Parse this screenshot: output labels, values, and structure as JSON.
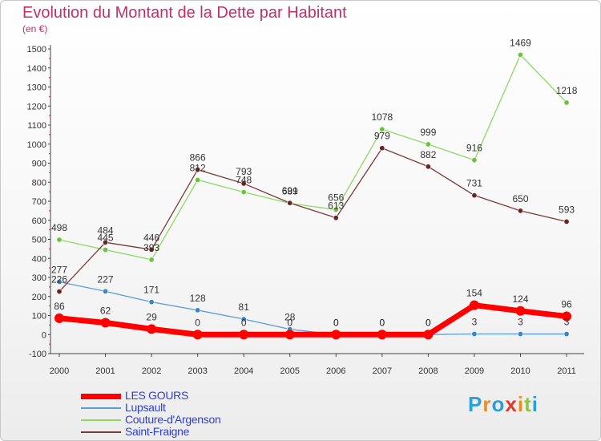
{
  "header": {
    "title": "Evolution du Montant de la Dette par Habitant",
    "subtitle": "(en €)"
  },
  "logo": {
    "text": "Proxiti",
    "letters": [
      "P",
      "r",
      "o",
      "x",
      "i",
      "t",
      "i"
    ],
    "colors": [
      "#2aa0d8",
      "#f08c1e",
      "#2aa0d8",
      "#e23a2a",
      "#f08c1e",
      "#8cc63f",
      "#2aa0d8"
    ]
  },
  "chart_data": {
    "type": "line",
    "x": [
      "2000",
      "2001",
      "2002",
      "2003",
      "2004",
      "2005",
      "2006",
      "2007",
      "2008",
      "2009",
      "2010",
      "2011"
    ],
    "ylim": [
      -100,
      1500
    ],
    "yticks": [
      -100,
      0,
      100,
      200,
      300,
      400,
      500,
      600,
      700,
      800,
      900,
      1000,
      1100,
      1200,
      1300,
      1400,
      1500
    ],
    "grid": false,
    "legend_position": "bottom-left",
    "series": [
      {
        "name": "Lupsault",
        "color": "#5a9bd5",
        "marker": "#3a85c8",
        "width": 1.3,
        "values": [
          277,
          227,
          171,
          128,
          81,
          28,
          0,
          0,
          0,
          3,
          3,
          3
        ],
        "labels": [
          "277",
          "227",
          "171",
          "128",
          "81",
          "28",
          "0",
          "0",
          "0",
          "3",
          "3",
          "3"
        ]
      },
      {
        "name": "Couture-d'Argenson",
        "color": "#8fd866",
        "marker": "#6cc23a",
        "width": 1.3,
        "values": [
          498,
          445,
          393,
          812,
          748,
          689,
          656,
          1078,
          999,
          916,
          1469,
          1218
        ],
        "labels": [
          "498",
          "445",
          "393",
          "812",
          "748",
          "689",
          "656",
          "1078",
          "999",
          "916",
          "1469",
          "1218"
        ]
      },
      {
        "name": "Saint-Fraigne",
        "color": "#7a3a3a",
        "marker": "#6a2424",
        "width": 1.3,
        "values": [
          226,
          484,
          446,
          866,
          793,
          691,
          613,
          979,
          882,
          731,
          650,
          593
        ],
        "labels": [
          "226",
          "484",
          "446",
          "866",
          "793",
          "691",
          "613",
          "979",
          "882",
          "731",
          "650",
          "593"
        ]
      },
      {
        "name": "LES GOURS",
        "color": "#ff0000",
        "marker": "#ff0000",
        "width": 7,
        "values": [
          86,
          62,
          29,
          0,
          0,
          0,
          0,
          0,
          0,
          154,
          124,
          96
        ],
        "labels": [
          "86",
          "62",
          "29",
          "0",
          "0",
          "0",
          "0",
          "0",
          "0",
          "154",
          "124",
          "96"
        ]
      }
    ],
    "legend_order": [
      "LES GOURS",
      "Lupsault",
      "Couture-d'Argenson",
      "Saint-Fraigne"
    ]
  }
}
